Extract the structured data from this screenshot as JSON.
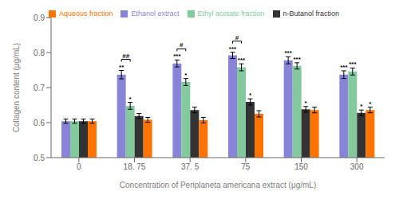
{
  "chart_data": {
    "type": "bar",
    "categories": [
      "0",
      "18. 75",
      "37. 5",
      "75",
      "150",
      "300"
    ],
    "x_label": "Concentration of Periplaneta americana extract (μg/mL)",
    "y_label": "Collagen content (μg/mL)",
    "series": [
      {
        "name": "Ethanol extract",
        "color": "#8884d8",
        "values": [
          0.604,
          0.737,
          0.769,
          0.792,
          0.778,
          0.737
        ],
        "errors": [
          0.006,
          0.012,
          0.01,
          0.009,
          0.01,
          0.011
        ],
        "annotations": [
          null,
          "**",
          "***",
          "***",
          "***",
          "***"
        ]
      },
      {
        "name": "Ethyl acetate fraction",
        "color": "#82ca9d",
        "values": [
          0.604,
          0.648,
          0.716,
          0.758,
          0.762,
          0.746
        ],
        "errors": [
          0.006,
          0.01,
          0.01,
          0.01,
          0.009,
          0.01
        ],
        "annotations": [
          null,
          "*",
          "*",
          "***",
          "***",
          "***"
        ]
      },
      {
        "name": "n-Butanol fraction",
        "color": "#333333",
        "values": [
          0.604,
          0.619,
          0.636,
          0.659,
          0.638,
          0.628
        ],
        "errors": [
          0.006,
          0.007,
          0.008,
          0.009,
          0.008,
          0.008
        ],
        "annotations": [
          null,
          null,
          null,
          "*",
          "*",
          "*"
        ]
      },
      {
        "name": "Aqueous fraction",
        "color": "#ff7300",
        "values": [
          0.604,
          0.608,
          0.607,
          0.625,
          0.636,
          0.636
        ],
        "errors": [
          0.006,
          0.007,
          0.008,
          0.009,
          0.008,
          0.008
        ],
        "annotations": [
          null,
          null,
          null,
          null,
          null,
          "*"
        ]
      }
    ],
    "annotations": [
      {
        "category": "18. 75",
        "series": [
          "Ethanol extract",
          "Ethyl acetate fraction"
        ],
        "label": "##"
      },
      {
        "category": "37. 5",
        "series": [
          "Ethanol extract",
          "Ethyl acetate fraction"
        ],
        "label": "#"
      },
      {
        "category": "75",
        "series": [
          "Ethanol extract",
          "Ethyl acetate fraction"
        ],
        "label": "#"
      }
    ],
    "ylim": [
      0.5,
      0.9
    ],
    "yticks": [
      0.5,
      0.6,
      0.7,
      0.8,
      0.9
    ],
    "grid": false,
    "legend": "top"
  }
}
